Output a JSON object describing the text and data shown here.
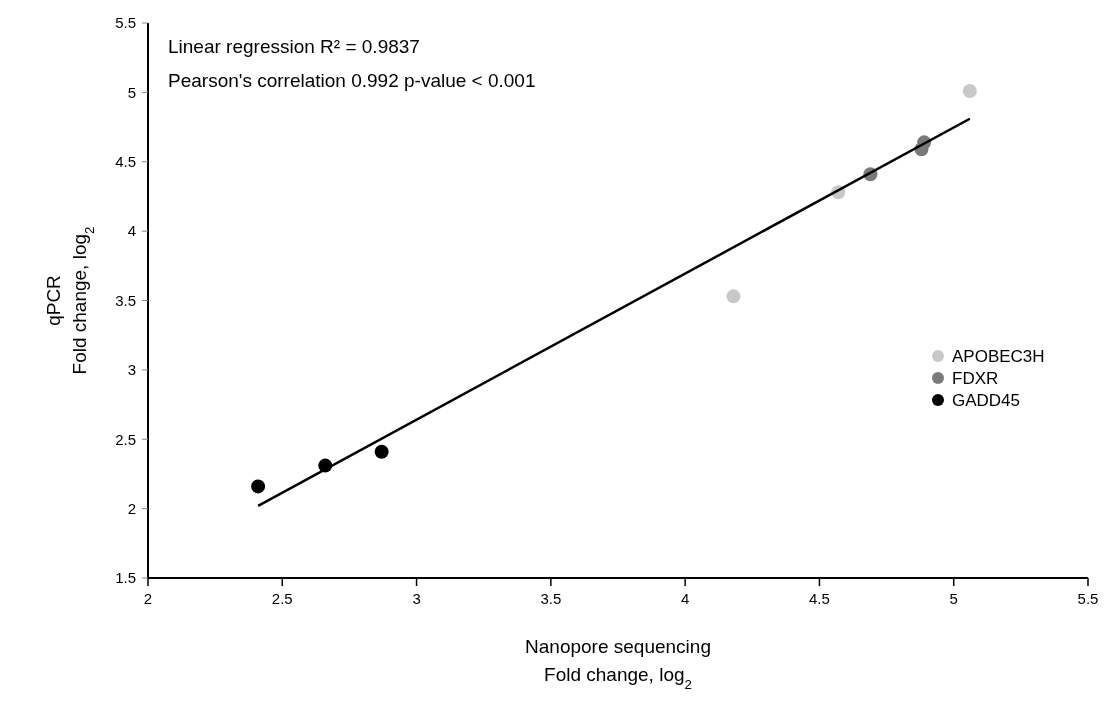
{
  "chart_data": {
    "type": "scatter",
    "xlabel": "Nanopore sequencing\nFold change, log$_{2}$",
    "ylabel": "qPCR\nFold change, log$_{2}$",
    "annotations": [
      "Linear regression R² = 0.9837",
      "Pearson's correlation 0.992 p-value < 0.001"
    ],
    "xlim": [
      2,
      5.5
    ],
    "xticks": [
      2,
      2.5,
      3,
      3.5,
      4,
      4.5,
      5,
      5.5
    ],
    "ylim": [
      1.5,
      5.5
    ],
    "yticks": [
      1.5,
      2,
      2.5,
      3,
      3.5,
      4,
      4.5,
      5,
      5.5
    ],
    "grid": false,
    "legend": "right",
    "marker": "circle",
    "series": [
      {
        "name": "APOBEC3H",
        "color": "#c8c8c8",
        "x": [
          4.18,
          4.57,
          5.06
        ],
        "values": [
          3.53,
          4.28,
          5.01
        ]
      },
      {
        "name": "FDXR",
        "color": "#7a7a7a",
        "x": [
          4.69,
          4.88,
          4.89
        ],
        "values": [
          4.41,
          4.59,
          4.64
        ]
      },
      {
        "name": "GADD45",
        "color": "#000000",
        "x": [
          2.41,
          2.66,
          2.87
        ],
        "values": [
          2.16,
          2.31,
          2.41
        ]
      },
      {
        "type": "line",
        "marker": "none",
        "color": "#000000",
        "x": [
          2.41,
          5.06
        ],
        "values": [
          2.02,
          4.81
        ]
      }
    ]
  }
}
